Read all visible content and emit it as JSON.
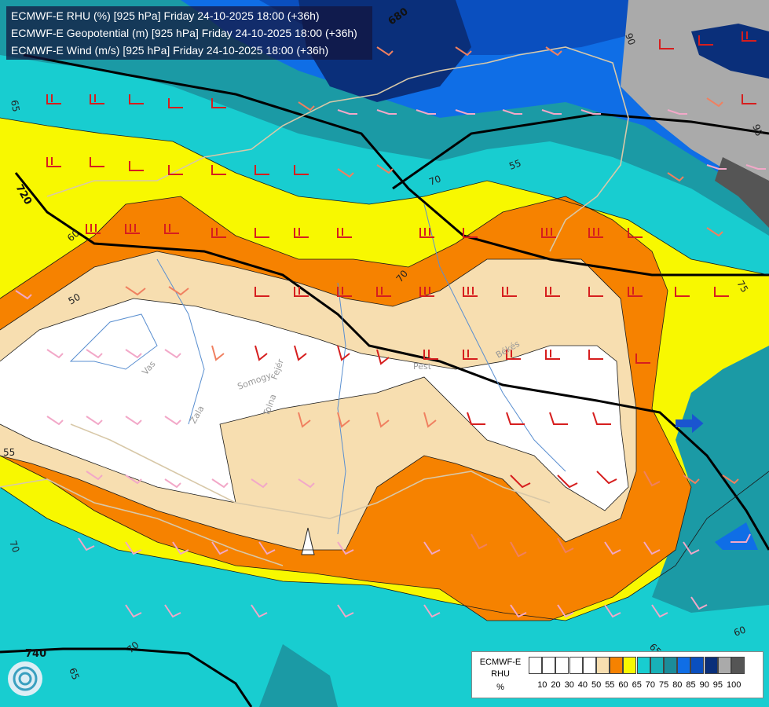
{
  "titles": {
    "line1": "ECMWF-E RHU (%) [925 hPa] Friday 24-10-2025 18:00 (+36h)",
    "line2": "ECMWF-E Geopotential (m) [925 hPa] Friday 24-10-2025 18:00 (+36h)",
    "line3": "ECMWF-E Wind (m/s) [925 hPa] Friday 24-10-2025 18:00 (+36h)"
  },
  "geopotential_labels": [
    "680",
    "720",
    "740"
  ],
  "rhu_contour_labels": [
    "65",
    "70",
    "60",
    "50",
    "55",
    "70",
    "65",
    "55",
    "70",
    "75",
    "70",
    "60",
    "65",
    "90",
    "95"
  ],
  "place_labels": [
    "Pest",
    "Békés",
    "Vas",
    "Zala",
    "Somogy",
    "Fejér",
    "Tolna"
  ],
  "legend": {
    "title_lines": [
      "ECMWF-E",
      "RHU",
      "%"
    ],
    "ticks": [
      "10",
      "20",
      "30",
      "40",
      "50",
      "55",
      "60",
      "65",
      "70",
      "75",
      "80",
      "85",
      "90",
      "95",
      "100"
    ],
    "colors": [
      "#ffffff",
      "#ffffff",
      "#ffffff",
      "#ffffff",
      "#ffffff",
      "#f7deb0",
      "#f68200",
      "#f8f800",
      "#18cdd0",
      "#18b1b8",
      "#1b8c9a",
      "#0f6ee6",
      "#0a4fbf",
      "#0a2f7a",
      "#aaaaaa",
      "#555555"
    ]
  }
}
